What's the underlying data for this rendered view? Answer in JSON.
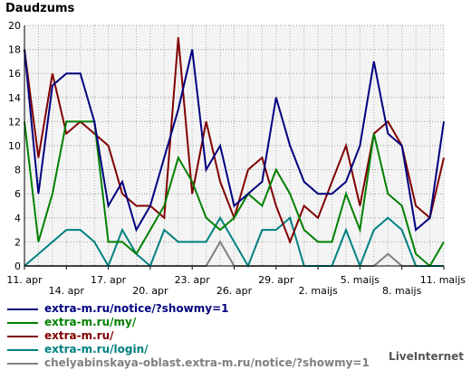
{
  "chart_data": {
    "type": "line",
    "title": "Daudzums",
    "xlabel": "",
    "ylabel": "",
    "ylim": [
      0,
      20
    ],
    "y_ticks": [
      0,
      2,
      4,
      6,
      8,
      10,
      12,
      14,
      16,
      18,
      20
    ],
    "grid": true,
    "legend_position": "bottom",
    "x_tick_labels": [
      "11. apr",
      "14. apr",
      "17. apr",
      "20. apr",
      "23. apr",
      "26. apr",
      "29. apr",
      "2. maijs",
      "5. maijs",
      "8. maijs",
      "11. maijs"
    ],
    "x_tick_positions": [
      0,
      3,
      6,
      9,
      12,
      15,
      18,
      21,
      24,
      27,
      30
    ],
    "x_days": 31,
    "series": [
      {
        "name": "extra-m.ru/notice/?showmy=1",
        "color": "#00007f",
        "values": [
          18,
          6,
          15,
          16,
          16,
          12,
          5,
          7,
          3,
          5,
          9,
          13,
          18,
          8,
          10,
          5,
          6,
          7,
          14,
          10,
          7,
          6,
          6,
          7,
          10,
          17,
          11,
          10,
          3,
          4,
          12
        ]
      },
      {
        "name": "extra-m.ru/my/",
        "color": "#008000",
        "values": [
          12,
          2,
          6,
          12,
          12,
          12,
          2,
          2,
          1,
          3,
          5,
          9,
          7,
          4,
          3,
          4,
          6,
          5,
          8,
          6,
          3,
          2,
          2,
          6,
          3,
          11,
          6,
          5,
          1,
          0,
          2
        ]
      },
      {
        "name": "extra-m.ru/",
        "color": "#800000",
        "values": [
          18,
          9,
          16,
          11,
          12,
          11,
          10,
          6,
          5,
          5,
          4,
          19,
          6,
          12,
          7,
          4,
          8,
          9,
          5,
          2,
          5,
          4,
          7,
          10,
          5,
          11,
          12,
          10,
          5,
          4,
          9
        ]
      },
      {
        "name": "extra-m.ru/login/",
        "color": "#008080",
        "values": [
          0,
          1,
          2,
          3,
          3,
          2,
          0,
          3,
          1,
          0,
          3,
          2,
          2,
          2,
          4,
          2,
          0,
          3,
          3,
          4,
          0,
          0,
          0,
          3,
          0,
          3,
          4,
          3,
          0,
          0,
          0
        ]
      },
      {
        "name": "chelyabinskaya-oblast.extra-m.ru/notice/?showmy=1",
        "color": "#808080",
        "values": [
          0,
          0,
          0,
          0,
          0,
          0,
          0,
          0,
          0,
          0,
          0,
          0,
          0,
          0,
          2,
          0,
          0,
          0,
          0,
          0,
          0,
          0,
          0,
          0,
          0,
          0,
          1,
          0,
          0,
          0,
          0
        ]
      }
    ]
  },
  "credit": "LiveInternet"
}
